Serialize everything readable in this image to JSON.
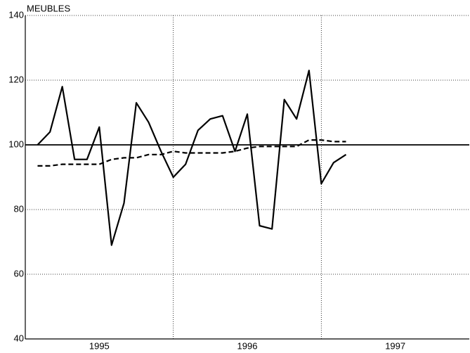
{
  "chart_data": {
    "type": "line",
    "title": "MEUBLES",
    "x": [
      1995.083,
      1995.167,
      1995.25,
      1995.333,
      1995.417,
      1995.5,
      1995.583,
      1995.667,
      1995.75,
      1995.833,
      1995.917,
      1996.0,
      1996.083,
      1996.167,
      1996.25,
      1996.333,
      1996.417,
      1996.5,
      1996.583,
      1996.667,
      1996.75,
      1996.833,
      1996.917,
      1997.0,
      1997.083,
      1997.167
    ],
    "series": [
      {
        "color": "#000000",
        "dash": false,
        "values": [
          100,
          104,
          118,
          95.5,
          95.5,
          105.5,
          69,
          82,
          113,
          107,
          98,
          90,
          94,
          104.5,
          108,
          109,
          98,
          109.5,
          75,
          74,
          114,
          108,
          123,
          88,
          94.5,
          97
        ]
      },
      {
        "color": "#000000",
        "dash": true,
        "values": [
          93.5,
          93.5,
          94,
          94,
          94,
          94,
          95.5,
          96,
          96,
          97,
          97,
          98,
          97.5,
          97.5,
          97.5,
          97.5,
          98,
          99,
          99.5,
          99.5,
          99.5,
          99.5,
          101.5,
          101.5,
          101,
          101
        ]
      }
    ],
    "xlim": [
      1995,
      1998
    ],
    "xticks": [
      {
        "value": 1995.5,
        "label": "1995"
      },
      {
        "value": 1996.5,
        "label": "1996"
      },
      {
        "value": 1997.5,
        "label": "1997"
      }
    ],
    "xgrid": [
      1996,
      1997
    ],
    "ylim": [
      40,
      140
    ],
    "yticks": [
      40,
      60,
      80,
      100,
      120,
      140
    ],
    "reference_line": 100,
    "grid": true
  }
}
